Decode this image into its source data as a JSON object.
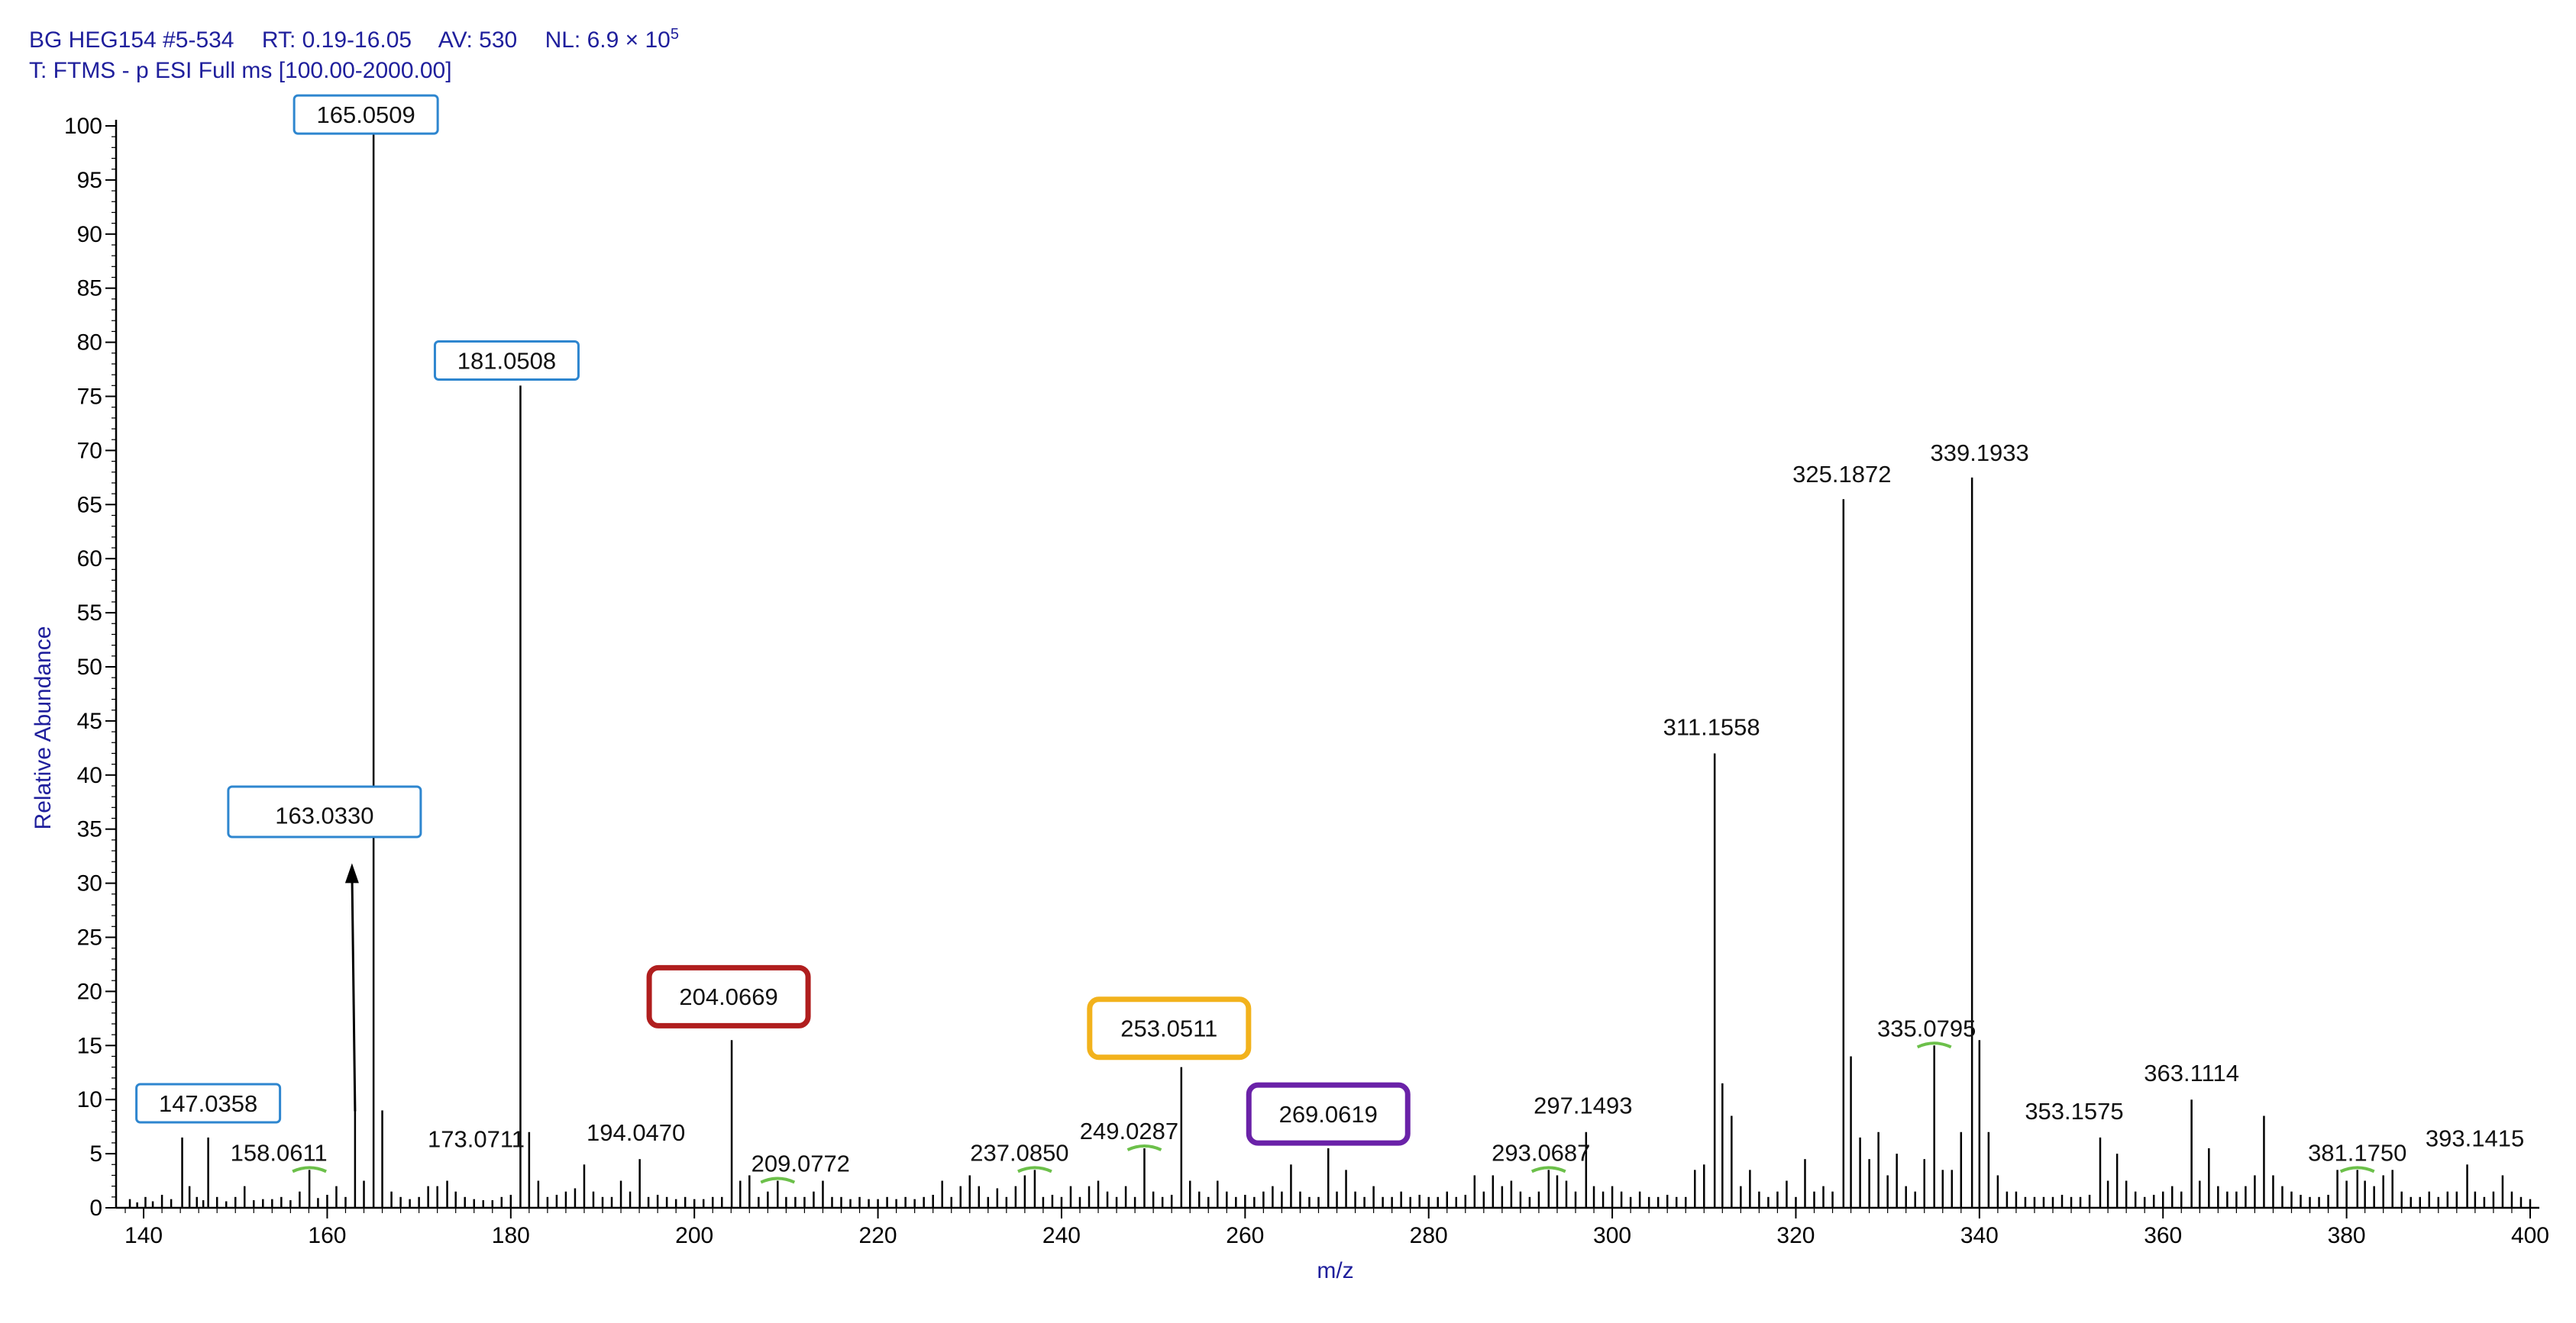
{
  "header": {
    "line1": {
      "sample": "BG HEG154 #5-534",
      "rt_label": "RT:",
      "rt_value": "0.19-16.05",
      "av_label": "AV:",
      "av_value": "530",
      "nl_label": "NL:",
      "nl_value": "6.9 × 10",
      "nl_exp": "5"
    },
    "line2": "T: FTMS - p ESI Full ms [100.00-2000.00]"
  },
  "chart_data": {
    "type": "bar",
    "xlabel": "m/z",
    "ylabel": "Relative Abundance",
    "xlim": [
      137,
      401
    ],
    "ylim": [
      0,
      100
    ],
    "x_ticks": [
      140,
      160,
      180,
      200,
      220,
      240,
      260,
      280,
      300,
      320,
      340,
      360,
      380,
      400
    ],
    "y_ticks": [
      0,
      5,
      10,
      15,
      20,
      25,
      30,
      35,
      40,
      45,
      50,
      55,
      60,
      65,
      70,
      75,
      80,
      85,
      90,
      95,
      100
    ],
    "labeled_peaks": [
      {
        "mz": 147.0358,
        "label": "147.0358",
        "y": 6.5
      },
      {
        "mz": 158.0611,
        "label": "158.0611",
        "y": 3.5
      },
      {
        "mz": 163.033,
        "label": "163.0330",
        "y": 9.0
      },
      {
        "mz": 165.0509,
        "label": "165.0509",
        "y": 100
      },
      {
        "mz": 173.0711,
        "label": "173.0711",
        "y": 2.5
      },
      {
        "mz": 181.0508,
        "label": "181.0508",
        "y": 76
      },
      {
        "mz": 194.047,
        "label": "194.0470",
        "y": 4.5
      },
      {
        "mz": 204.0669,
        "label": "204.0669",
        "y": 15.5
      },
      {
        "mz": 209.0772,
        "label": "209.0772",
        "y": 2.5
      },
      {
        "mz": 237.085,
        "label": "237.0850",
        "y": 3.5
      },
      {
        "mz": 249.0287,
        "label": "249.0287",
        "y": 5.5
      },
      {
        "mz": 253.0511,
        "label": "253.0511",
        "y": 13.0
      },
      {
        "mz": 269.0619,
        "label": "269.0619",
        "y": 5.5
      },
      {
        "mz": 293.0687,
        "label": "293.0687",
        "y": 3.5
      },
      {
        "mz": 297.1493,
        "label": "297.1493",
        "y": 7.0
      },
      {
        "mz": 311.1558,
        "label": "311.1558",
        "y": 42
      },
      {
        "mz": 325.1872,
        "label": "325.1872",
        "y": 65.5
      },
      {
        "mz": 335.0795,
        "label": "335.0795",
        "y": 15
      },
      {
        "mz": 339.1933,
        "label": "339.1933",
        "y": 67.5
      },
      {
        "mz": 353.1575,
        "label": "353.1575",
        "y": 6.5
      },
      {
        "mz": 363.1114,
        "label": "363.1114",
        "y": 10
      },
      {
        "mz": 381.175,
        "label": "381.1750",
        "y": 3.5
      },
      {
        "mz": 393.1415,
        "label": "393.1415",
        "y": 4.0
      }
    ],
    "minor_peaks": [
      [
        138.5,
        0.8
      ],
      [
        139.3,
        0.5
      ],
      [
        140.2,
        1.0
      ],
      [
        141.0,
        0.6
      ],
      [
        142.0,
        1.2
      ],
      [
        143.0,
        0.8
      ],
      [
        144.2,
        6.5
      ],
      [
        145.0,
        2.0
      ],
      [
        145.8,
        1.0
      ],
      [
        146.5,
        0.7
      ],
      [
        148.0,
        1.0
      ],
      [
        149.0,
        0.6
      ],
      [
        150.0,
        1.0
      ],
      [
        151.0,
        2.0
      ],
      [
        152.0,
        0.7
      ],
      [
        153.0,
        0.8
      ],
      [
        154.0,
        0.8
      ],
      [
        155.0,
        1.0
      ],
      [
        156.0,
        0.7
      ],
      [
        157.0,
        1.5
      ],
      [
        159.0,
        0.9
      ],
      [
        160.0,
        1.2
      ],
      [
        161.0,
        2.0
      ],
      [
        162.0,
        1.0
      ],
      [
        164.0,
        2.5
      ],
      [
        166.0,
        9.0
      ],
      [
        167.0,
        1.5
      ],
      [
        168.0,
        1.0
      ],
      [
        169.0,
        0.8
      ],
      [
        170.0,
        1.0
      ],
      [
        171.0,
        2.0
      ],
      [
        172.0,
        2.0
      ],
      [
        174.0,
        1.5
      ],
      [
        175.0,
        1.0
      ],
      [
        176.0,
        0.8
      ],
      [
        177.0,
        0.7
      ],
      [
        178.0,
        0.7
      ],
      [
        179.0,
        1.0
      ],
      [
        180.0,
        1.2
      ],
      [
        182.0,
        7.0
      ],
      [
        183.0,
        2.5
      ],
      [
        184.0,
        1.0
      ],
      [
        185.0,
        1.2
      ],
      [
        186.0,
        1.5
      ],
      [
        187.0,
        1.8
      ],
      [
        188.0,
        4.0
      ],
      [
        189.0,
        1.5
      ],
      [
        190.0,
        1.0
      ],
      [
        191.0,
        1.0
      ],
      [
        192.0,
        2.5
      ],
      [
        193.0,
        1.5
      ],
      [
        195.0,
        1.0
      ],
      [
        196.0,
        1.2
      ],
      [
        197.0,
        1.0
      ],
      [
        198.0,
        0.8
      ],
      [
        199.0,
        1.0
      ],
      [
        200.0,
        0.8
      ],
      [
        201.0,
        0.8
      ],
      [
        202.0,
        1.0
      ],
      [
        203.0,
        1.0
      ],
      [
        205.0,
        2.5
      ],
      [
        206.0,
        3.0
      ],
      [
        207.0,
        1.0
      ],
      [
        208.0,
        1.5
      ],
      [
        210.0,
        1.0
      ],
      [
        211.0,
        1.0
      ],
      [
        212.0,
        1.0
      ],
      [
        213.0,
        1.5
      ],
      [
        214.0,
        2.5
      ],
      [
        215.0,
        1.0
      ],
      [
        216.0,
        1.0
      ],
      [
        217.0,
        0.8
      ],
      [
        218.0,
        1.0
      ],
      [
        219.0,
        0.8
      ],
      [
        220.0,
        0.8
      ],
      [
        221.0,
        1.0
      ],
      [
        222.0,
        0.8
      ],
      [
        223.0,
        1.0
      ],
      [
        224.0,
        0.8
      ],
      [
        225.0,
        1.0
      ],
      [
        226.0,
        1.2
      ],
      [
        227.0,
        2.5
      ],
      [
        228.0,
        1.0
      ],
      [
        229.0,
        2.0
      ],
      [
        230.0,
        3.0
      ],
      [
        231.0,
        2.0
      ],
      [
        232.0,
        1.0
      ],
      [
        233.0,
        1.8
      ],
      [
        234.0,
        1.0
      ],
      [
        235.0,
        2.0
      ],
      [
        236.0,
        3.0
      ],
      [
        238.0,
        1.0
      ],
      [
        239.0,
        1.2
      ],
      [
        240.0,
        1.0
      ],
      [
        241.0,
        2.0
      ],
      [
        242.0,
        1.0
      ],
      [
        243.0,
        2.0
      ],
      [
        244.0,
        2.5
      ],
      [
        245.0,
        1.5
      ],
      [
        246.0,
        1.0
      ],
      [
        247.0,
        2.0
      ],
      [
        248.0,
        1.0
      ],
      [
        250.0,
        1.5
      ],
      [
        251.0,
        1.0
      ],
      [
        252.0,
        1.2
      ],
      [
        254.0,
        2.5
      ],
      [
        255.0,
        1.5
      ],
      [
        256.0,
        1.0
      ],
      [
        257.0,
        2.5
      ],
      [
        258.0,
        1.5
      ],
      [
        259.0,
        1.0
      ],
      [
        260.0,
        1.2
      ],
      [
        261.0,
        1.0
      ],
      [
        262.0,
        1.5
      ],
      [
        263.0,
        2.0
      ],
      [
        264.0,
        1.5
      ],
      [
        265.0,
        4.0
      ],
      [
        266.0,
        1.5
      ],
      [
        267.0,
        1.0
      ],
      [
        268.0,
        1.0
      ],
      [
        270.0,
        1.5
      ],
      [
        271.0,
        3.5
      ],
      [
        272.0,
        1.5
      ],
      [
        273.0,
        1.0
      ],
      [
        274.0,
        2.0
      ],
      [
        275.0,
        1.0
      ],
      [
        276.0,
        1.0
      ],
      [
        277.0,
        1.5
      ],
      [
        278.0,
        1.0
      ],
      [
        279.0,
        1.2
      ],
      [
        280.0,
        1.0
      ],
      [
        281.0,
        1.0
      ],
      [
        282.0,
        1.5
      ],
      [
        283.0,
        1.0
      ],
      [
        284.0,
        1.2
      ],
      [
        285.0,
        3.0
      ],
      [
        286.0,
        1.5
      ],
      [
        287.0,
        3.0
      ],
      [
        288.0,
        2.0
      ],
      [
        289.0,
        2.5
      ],
      [
        290.0,
        1.5
      ],
      [
        291.0,
        1.0
      ],
      [
        292.0,
        1.5
      ],
      [
        294.0,
        3.0
      ],
      [
        295.0,
        2.5
      ],
      [
        296.0,
        1.5
      ],
      [
        298.0,
        2.0
      ],
      [
        299.0,
        1.5
      ],
      [
        300.0,
        2.0
      ],
      [
        301.0,
        1.5
      ],
      [
        302.0,
        1.0
      ],
      [
        303.0,
        1.5
      ],
      [
        304.0,
        1.0
      ],
      [
        305.0,
        1.0
      ],
      [
        306.0,
        1.2
      ],
      [
        307.0,
        1.0
      ],
      [
        308.0,
        1.0
      ],
      [
        309.0,
        3.5
      ],
      [
        310.0,
        4.0
      ],
      [
        312.0,
        11.5
      ],
      [
        313.0,
        8.5
      ],
      [
        314.0,
        2.0
      ],
      [
        315.0,
        3.5
      ],
      [
        316.0,
        1.5
      ],
      [
        317.0,
        1.0
      ],
      [
        318.0,
        1.5
      ],
      [
        319.0,
        2.5
      ],
      [
        320.0,
        1.0
      ],
      [
        321.0,
        4.5
      ],
      [
        322.0,
        1.5
      ],
      [
        323.0,
        2.0
      ],
      [
        324.0,
        1.5
      ],
      [
        326.0,
        14.0
      ],
      [
        327.0,
        6.5
      ],
      [
        328.0,
        4.5
      ],
      [
        329.0,
        7.0
      ],
      [
        330.0,
        3.0
      ],
      [
        331.0,
        5.0
      ],
      [
        332.0,
        2.0
      ],
      [
        333.0,
        1.5
      ],
      [
        334.0,
        4.5
      ],
      [
        336.0,
        3.5
      ],
      [
        337.0,
        3.5
      ],
      [
        338.0,
        7.0
      ],
      [
        340.0,
        15.5
      ],
      [
        341.0,
        7.0
      ],
      [
        342.0,
        3.0
      ],
      [
        343.0,
        1.5
      ],
      [
        344.0,
        1.5
      ],
      [
        345.0,
        1.0
      ],
      [
        346.0,
        1.0
      ],
      [
        347.0,
        1.0
      ],
      [
        348.0,
        1.0
      ],
      [
        349.0,
        1.2
      ],
      [
        350.0,
        1.0
      ],
      [
        351.0,
        1.0
      ],
      [
        352.0,
        1.2
      ],
      [
        354.0,
        2.5
      ],
      [
        355.0,
        5.0
      ],
      [
        356.0,
        2.5
      ],
      [
        357.0,
        1.5
      ],
      [
        358.0,
        1.0
      ],
      [
        359.0,
        1.2
      ],
      [
        360.0,
        1.5
      ],
      [
        361.0,
        2.0
      ],
      [
        362.0,
        1.5
      ],
      [
        364.0,
        2.5
      ],
      [
        365.0,
        5.5
      ],
      [
        366.0,
        2.0
      ],
      [
        367.0,
        1.5
      ],
      [
        368.0,
        1.5
      ],
      [
        369.0,
        2.0
      ],
      [
        370.0,
        3.0
      ],
      [
        371.0,
        8.5
      ],
      [
        372.0,
        3.0
      ],
      [
        373.0,
        2.0
      ],
      [
        374.0,
        1.5
      ],
      [
        375.0,
        1.2
      ],
      [
        376.0,
        1.0
      ],
      [
        377.0,
        1.0
      ],
      [
        378.0,
        1.2
      ],
      [
        379.0,
        3.5
      ],
      [
        380.0,
        2.5
      ],
      [
        382.0,
        2.5
      ],
      [
        383.0,
        2.0
      ],
      [
        384.0,
        3.0
      ],
      [
        385.0,
        3.5
      ],
      [
        386.0,
        1.5
      ],
      [
        387.0,
        1.0
      ],
      [
        388.0,
        1.0
      ],
      [
        389.0,
        1.5
      ],
      [
        390.0,
        1.0
      ],
      [
        391.0,
        1.5
      ],
      [
        392.0,
        1.5
      ],
      [
        394.0,
        1.5
      ],
      [
        395.0,
        1.0
      ],
      [
        396.0,
        1.5
      ],
      [
        397.0,
        3.0
      ],
      [
        398.0,
        1.5
      ],
      [
        399.0,
        1.0
      ],
      [
        400.0,
        0.8
      ]
    ],
    "annotation_boxes": [
      {
        "peak": "147.0358",
        "color": "#2e86cf"
      },
      {
        "peak": "163.0330",
        "color": "#2e86cf"
      },
      {
        "peak": "165.0509",
        "color": "#2e86cf"
      },
      {
        "peak": "181.0508",
        "color": "#2e86cf"
      },
      {
        "peak": "204.0669",
        "color": "#b01e1e"
      },
      {
        "peak": "253.0511",
        "color": "#f2b21c"
      },
      {
        "peak": "269.0619",
        "color": "#6a22a8"
      }
    ],
    "green_markers": [
      "158.0611",
      "209.0772",
      "237.0850",
      "249.0287",
      "293.0687",
      "335.0795",
      "381.1750"
    ],
    "arrow": {
      "target": "163.0330"
    },
    "colors": {
      "header": "#1f1f9c",
      "marker": "#6cc04a"
    }
  }
}
